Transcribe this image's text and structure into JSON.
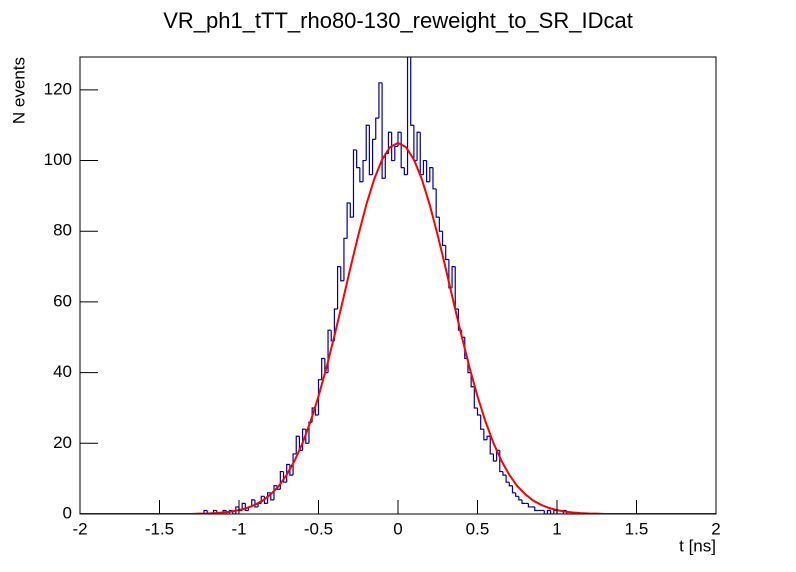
{
  "chart_data": {
    "type": "histogram",
    "title": "VR_ph1_tTT_rho80-130_reweight_to_SR_IDcat",
    "x_label": "t [ns]",
    "y_label": "N events",
    "xlim": [
      -2,
      2
    ],
    "ylim": [
      0,
      129.3
    ],
    "xticks": [
      -2,
      -1.5,
      -1,
      -0.5,
      0,
      0.5,
      1,
      1.5,
      2
    ],
    "yticks": [
      0,
      20,
      40,
      60,
      80,
      100,
      120
    ],
    "color": "#000099",
    "bins": [
      -2,
      -1.98,
      -1.96,
      -1.94,
      -1.92,
      -1.9,
      -1.88,
      -1.86,
      -1.84,
      -1.82,
      -1.8,
      -1.78,
      -1.76,
      -1.74,
      -1.72,
      -1.7,
      -1.68,
      -1.66,
      -1.64,
      -1.62,
      -1.6,
      -1.58,
      -1.56,
      -1.54,
      -1.52,
      -1.5,
      -1.48,
      -1.46,
      -1.44,
      -1.42,
      -1.4,
      -1.38,
      -1.36,
      -1.34,
      -1.32,
      -1.3,
      -1.28,
      -1.26,
      -1.24,
      -1.22,
      -1.2,
      -1.18,
      -1.16,
      -1.14,
      -1.12,
      -1.1,
      -1.08,
      -1.06,
      -1.04,
      -1.02,
      -1,
      -0.98,
      -0.96,
      -0.94,
      -0.92,
      -0.9,
      -0.88,
      -0.86,
      -0.84,
      -0.82,
      -0.8,
      -0.78,
      -0.76,
      -0.74,
      -0.72,
      -0.7,
      -0.68,
      -0.66,
      -0.64,
      -0.62,
      -0.6,
      -0.58,
      -0.56,
      -0.54,
      -0.52,
      -0.5,
      -0.48,
      -0.46,
      -0.44,
      -0.42,
      -0.4,
      -0.38,
      -0.36,
      -0.34,
      -0.32,
      -0.3,
      -0.28,
      -0.26,
      -0.24,
      -0.22,
      -0.2,
      -0.18,
      -0.16,
      -0.14,
      -0.12,
      -0.1,
      -0.08,
      -0.06,
      -0.04,
      -0.02,
      0,
      0.02,
      0.04,
      0.06,
      0.08,
      0.1,
      0.12,
      0.14,
      0.16,
      0.18,
      0.2,
      0.22,
      0.24,
      0.26,
      0.28,
      0.3,
      0.32,
      0.34,
      0.36,
      0.38,
      0.4,
      0.42,
      0.44,
      0.46,
      0.48,
      0.5,
      0.52,
      0.54,
      0.56,
      0.58,
      0.6,
      0.62,
      0.64,
      0.66,
      0.68,
      0.7,
      0.72,
      0.74,
      0.76,
      0.78,
      0.8,
      0.82,
      0.84,
      0.86,
      0.88,
      0.9,
      0.92,
      0.94,
      0.96,
      0.98,
      1,
      1.02,
      1.04,
      1.06,
      1.08,
      1.1,
      1.12,
      1.14,
      1.16,
      1.18,
      1.2,
      1.22,
      1.24,
      1.26,
      1.28,
      1.3,
      1.32,
      1.34,
      1.36,
      1.38,
      1.4,
      1.42,
      1.44,
      1.46,
      1.48,
      1.5,
      1.52,
      1.54,
      1.56,
      1.58,
      1.6,
      1.62,
      1.64,
      1.66,
      1.68,
      1.7,
      1.72,
      1.74,
      1.76,
      1.78,
      1.8,
      1.82,
      1.84,
      1.86,
      1.88,
      1.9,
      1.92,
      1.94,
      1.96,
      1.98,
      2
    ],
    "values": [
      0,
      0,
      0,
      0,
      0,
      0,
      0,
      0,
      0,
      0,
      0,
      0,
      0,
      0,
      0,
      0,
      0,
      0,
      0,
      0,
      0,
      0,
      0,
      0,
      0,
      0,
      0,
      0,
      0,
      0,
      0,
      0,
      0,
      0,
      0,
      0,
      0,
      0,
      0,
      1,
      0,
      0,
      1,
      0,
      0,
      1,
      0,
      1,
      0,
      2,
      1,
      3,
      1,
      2,
      4,
      2,
      3,
      5,
      3,
      6,
      4,
      8,
      7,
      12,
      9,
      14,
      11,
      17,
      22,
      18,
      24,
      20,
      26,
      30,
      28,
      38,
      44,
      40,
      52,
      49,
      58,
      70,
      66,
      78,
      88,
      84,
      103,
      98,
      94,
      100,
      110,
      96,
      106,
      112,
      122,
      95,
      102,
      108,
      100,
      104,
      108,
      98,
      96,
      130,
      110,
      100,
      108,
      96,
      100,
      94,
      98,
      92,
      84,
      80,
      76,
      72,
      64,
      70,
      58,
      52,
      50,
      44,
      40,
      36,
      30,
      28,
      24,
      21,
      22,
      17,
      15,
      18,
      12,
      11,
      9,
      8,
      6,
      5,
      4,
      3,
      3,
      2,
      2,
      1,
      1,
      1,
      0,
      1,
      0,
      1,
      0,
      0,
      1,
      0,
      0,
      0,
      0,
      0,
      0,
      0,
      0,
      0,
      0,
      0,
      0,
      0,
      0,
      0,
      0,
      0,
      0,
      0,
      0,
      0,
      0,
      0,
      0,
      0,
      0,
      0,
      0,
      0,
      0,
      0,
      0,
      0,
      0,
      0,
      0,
      0,
      0,
      0,
      0,
      0,
      0,
      0,
      0,
      0,
      0,
      0
    ],
    "fit": {
      "color": "#ff0000",
      "x": [
        -2,
        -1.95,
        -1.9,
        -1.85,
        -1.8,
        -1.75,
        -1.7,
        -1.65,
        -1.6,
        -1.55,
        -1.5,
        -1.45,
        -1.4,
        -1.35,
        -1.3,
        -1.25,
        -1.2,
        -1.15,
        -1.1,
        -1.05,
        -1,
        -0.95,
        -0.9,
        -0.85,
        -0.8,
        -0.75,
        -0.7,
        -0.65,
        -0.6,
        -0.55,
        -0.5,
        -0.45,
        -0.4,
        -0.35,
        -0.3,
        -0.25,
        -0.2,
        -0.15,
        -0.1,
        -0.05,
        0,
        0.05,
        0.1,
        0.15,
        0.2,
        0.25,
        0.3,
        0.35,
        0.4,
        0.45,
        0.5,
        0.55,
        0.6,
        0.65,
        0.7,
        0.75,
        0.8,
        0.85,
        0.9,
        0.95,
        1,
        1.05,
        1.1,
        1.15,
        1.2,
        1.25,
        1.3,
        1.35,
        1.4,
        1.45,
        1.5,
        1.55,
        1.6,
        1.65,
        1.7,
        1.75,
        1.8,
        1.85,
        1.9,
        1.95,
        2
      ],
      "values": [
        0,
        0,
        0,
        0,
        0,
        0,
        0,
        0,
        0,
        0,
        0,
        0,
        0,
        0,
        0,
        0.1,
        0.14,
        0.24,
        0.41,
        0.67,
        1.1,
        1.7,
        2.6,
        3.8,
        5.6,
        7.9,
        11.1,
        15.1,
        20.1,
        26.2,
        33.3,
        41.4,
        50.4,
        59.8,
        69.5,
        78.8,
        87.4,
        94.7,
        100.3,
        103.8,
        105,
        103.8,
        100.3,
        94.7,
        87.4,
        78.8,
        69.5,
        59.8,
        50.4,
        41.4,
        33.3,
        26.2,
        20.1,
        15.1,
        11.1,
        7.9,
        5.6,
        3.8,
        2.6,
        1.7,
        1.1,
        0.67,
        0.41,
        0.24,
        0.14,
        0.1,
        0,
        0,
        0,
        0,
        0,
        0,
        0,
        0,
        0,
        0,
        0,
        0,
        0,
        0,
        0
      ]
    }
  }
}
